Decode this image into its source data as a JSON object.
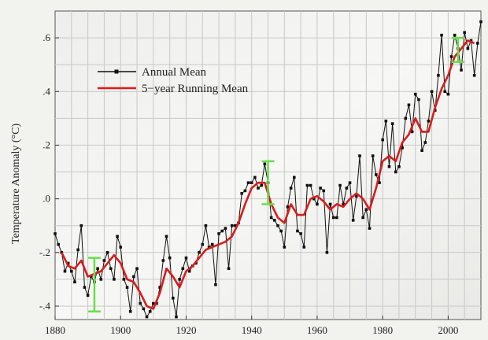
{
  "chart_data": {
    "type": "line",
    "xlabel": "",
    "ylabel": "Temperature Anomaly (°C)",
    "xlim": [
      1880,
      2010
    ],
    "ylim": [
      -0.45,
      0.7
    ],
    "x_ticks": [
      1880,
      1900,
      1920,
      1940,
      1960,
      1980,
      2000
    ],
    "x_tick_labels": [
      "1880",
      "1900",
      "1920",
      "1940",
      "1960",
      "1980",
      "2000"
    ],
    "y_ticks": [
      -0.4,
      -0.2,
      0.0,
      0.2,
      0.4,
      0.6
    ],
    "y_tick_labels": [
      "-.4",
      "-.2",
      ".0",
      ".2",
      ".4",
      ".6"
    ],
    "grid": true,
    "legend_position": "upper-left",
    "series": [
      {
        "name": "Annual Mean",
        "color": "#111111",
        "marker": "square",
        "x": [
          1880,
          1881,
          1882,
          1883,
          1884,
          1885,
          1886,
          1887,
          1888,
          1889,
          1890,
          1891,
          1892,
          1893,
          1894,
          1895,
          1896,
          1897,
          1898,
          1899,
          1900,
          1901,
          1902,
          1903,
          1904,
          1905,
          1906,
          1907,
          1908,
          1909,
          1910,
          1911,
          1912,
          1913,
          1914,
          1915,
          1916,
          1917,
          1918,
          1919,
          1920,
          1921,
          1922,
          1923,
          1924,
          1925,
          1926,
          1927,
          1928,
          1929,
          1930,
          1931,
          1932,
          1933,
          1934,
          1935,
          1936,
          1937,
          1938,
          1939,
          1940,
          1941,
          1942,
          1943,
          1944,
          1945,
          1946,
          1947,
          1948,
          1949,
          1950,
          1951,
          1952,
          1953,
          1954,
          1955,
          1956,
          1957,
          1958,
          1959,
          1960,
          1961,
          1962,
          1963,
          1964,
          1965,
          1966,
          1967,
          1968,
          1969,
          1970,
          1971,
          1972,
          1973,
          1974,
          1975,
          1976,
          1977,
          1978,
          1979,
          1980,
          1981,
          1982,
          1983,
          1984,
          1985,
          1986,
          1987,
          1988,
          1989,
          1990,
          1991,
          1992,
          1993,
          1994,
          1995,
          1996,
          1997,
          1998,
          1999,
          2000,
          2001,
          2002,
          2003,
          2004,
          2005,
          2006,
          2007,
          2008,
          2009,
          2010
        ],
        "y": [
          -0.13,
          -0.17,
          -0.2,
          -0.27,
          -0.24,
          -0.27,
          -0.31,
          -0.19,
          -0.1,
          -0.33,
          -0.36,
          -0.29,
          -0.31,
          -0.26,
          -0.3,
          -0.23,
          -0.2,
          -0.26,
          -0.3,
          -0.14,
          -0.18,
          -0.3,
          -0.33,
          -0.42,
          -0.29,
          -0.26,
          -0.39,
          -0.41,
          -0.44,
          -0.42,
          -0.39,
          -0.39,
          -0.33,
          -0.23,
          -0.14,
          -0.22,
          -0.37,
          -0.44,
          -0.3,
          -0.26,
          -0.22,
          -0.27,
          -0.25,
          -0.24,
          -0.2,
          -0.17,
          -0.1,
          -0.18,
          -0.17,
          -0.32,
          -0.13,
          -0.12,
          -0.11,
          -0.26,
          -0.1,
          -0.1,
          -0.09,
          0.02,
          0.03,
          0.06,
          0.06,
          0.08,
          0.04,
          0.05,
          0.13,
          0.06,
          -0.07,
          -0.08,
          -0.1,
          -0.12,
          -0.18,
          -0.03,
          0.04,
          0.08,
          -0.12,
          -0.13,
          -0.18,
          0.05,
          0.05,
          0.0,
          -0.02,
          0.04,
          0.03,
          -0.2,
          -0.02,
          -0.07,
          -0.07,
          0.05,
          -0.02,
          0.04,
          0.06,
          -0.08,
          0.01,
          0.16,
          -0.07,
          -0.04,
          -0.11,
          0.16,
          0.09,
          0.06,
          0.22,
          0.29,
          0.12,
          0.28,
          0.1,
          0.12,
          0.19,
          0.3,
          0.35,
          0.25,
          0.39,
          0.37,
          0.18,
          0.21,
          0.29,
          0.4,
          0.33,
          0.46,
          0.61,
          0.4,
          0.39,
          0.53,
          0.61,
          0.56,
          0.48,
          0.62,
          0.56,
          0.59,
          0.46,
          0.58,
          0.66
        ]
      },
      {
        "name": "5−year Running Mean",
        "color": "#d81c1c",
        "x": [
          1882,
          1884,
          1886,
          1888,
          1890,
          1892,
          1894,
          1896,
          1898,
          1900,
          1902,
          1904,
          1906,
          1908,
          1910,
          1912,
          1914,
          1916,
          1918,
          1920,
          1922,
          1924,
          1926,
          1928,
          1930,
          1932,
          1934,
          1936,
          1938,
          1940,
          1942,
          1944,
          1946,
          1948,
          1950,
          1952,
          1954,
          1956,
          1958,
          1960,
          1962,
          1964,
          1966,
          1968,
          1970,
          1972,
          1974,
          1976,
          1978,
          1980,
          1982,
          1984,
          1986,
          1988,
          1990,
          1992,
          1994,
          1996,
          1998,
          2000,
          2002,
          2004,
          2006,
          2008
        ],
        "y": [
          -0.2,
          -0.25,
          -0.26,
          -0.23,
          -0.29,
          -0.28,
          -0.27,
          -0.24,
          -0.21,
          -0.24,
          -0.3,
          -0.31,
          -0.35,
          -0.4,
          -0.41,
          -0.35,
          -0.26,
          -0.29,
          -0.33,
          -0.27,
          -0.25,
          -0.22,
          -0.19,
          -0.18,
          -0.17,
          -0.16,
          -0.14,
          -0.09,
          -0.02,
          0.04,
          0.06,
          0.06,
          -0.02,
          -0.07,
          -0.09,
          -0.02,
          -0.06,
          -0.06,
          0.0,
          0.01,
          -0.01,
          -0.04,
          -0.02,
          -0.03,
          0.0,
          0.02,
          0.0,
          -0.04,
          0.04,
          0.14,
          0.16,
          0.14,
          0.21,
          0.24,
          0.3,
          0.25,
          0.25,
          0.34,
          0.41,
          0.46,
          0.53,
          0.56,
          0.59,
          0.58
        ]
      }
    ],
    "error_bars": [
      {
        "x": 1892,
        "center": -0.32,
        "low": -0.42,
        "high": -0.22
      },
      {
        "x": 1945,
        "center": 0.06,
        "low": -0.02,
        "high": 0.14
      },
      {
        "x": 2003,
        "center": 0.55,
        "low": 0.51,
        "high": 0.6
      }
    ],
    "error_bar_color": "#66e04a"
  }
}
